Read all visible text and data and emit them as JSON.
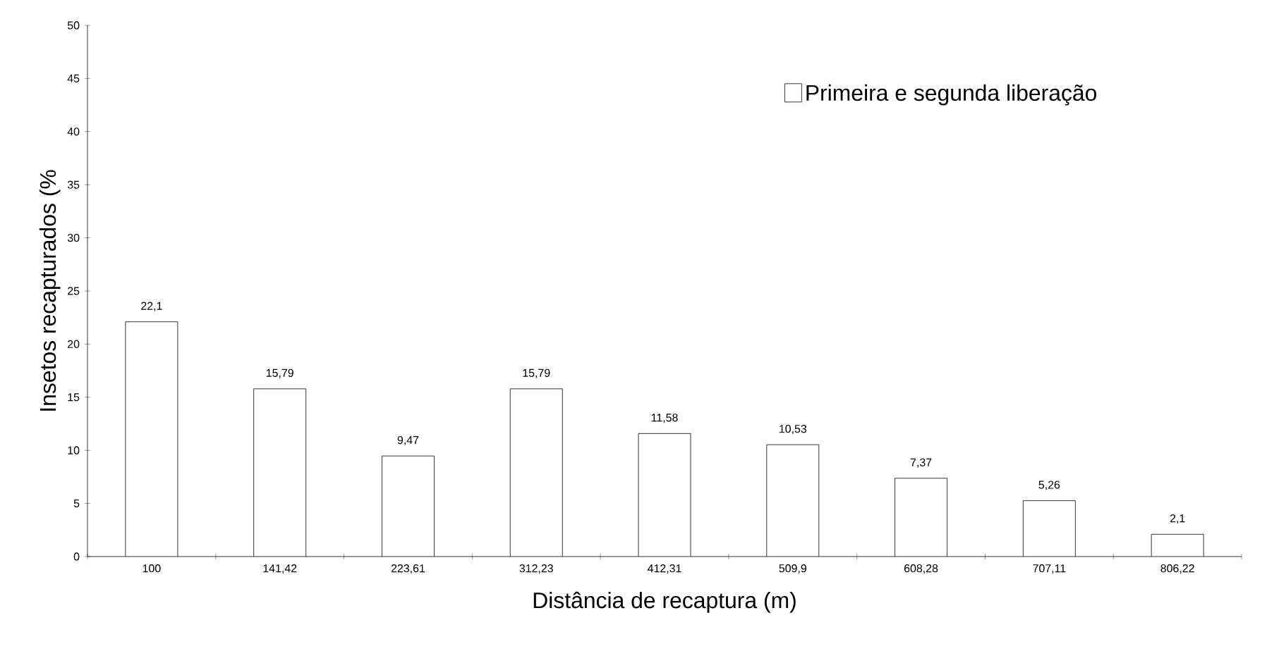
{
  "chart_data": {
    "type": "bar",
    "xlabel": "Distância de recaptura (m)",
    "ylabel": "Insetos recapturados (%",
    "categories": [
      "100",
      "141,42",
      "223,61",
      "312,23",
      "412,31",
      "509,9",
      "608,28",
      "707,11",
      "806,22"
    ],
    "series": [
      {
        "name": "Primeira e segunda liberação",
        "color": "#ffffff",
        "values": [
          22.1,
          15.79,
          9.47,
          15.79,
          11.58,
          10.53,
          7.37,
          5.26,
          2.1
        ],
        "value_labels": [
          "22,1",
          "15,79",
          "9,47",
          "15,79",
          "11,58",
          "10,53",
          "7,37",
          "5,26",
          "2,1"
        ]
      }
    ],
    "ylim": [
      0,
      50
    ],
    "yticks": [
      0,
      5,
      10,
      15,
      20,
      25,
      30,
      35,
      40,
      45,
      50
    ],
    "grid": false,
    "legend": "top right"
  }
}
